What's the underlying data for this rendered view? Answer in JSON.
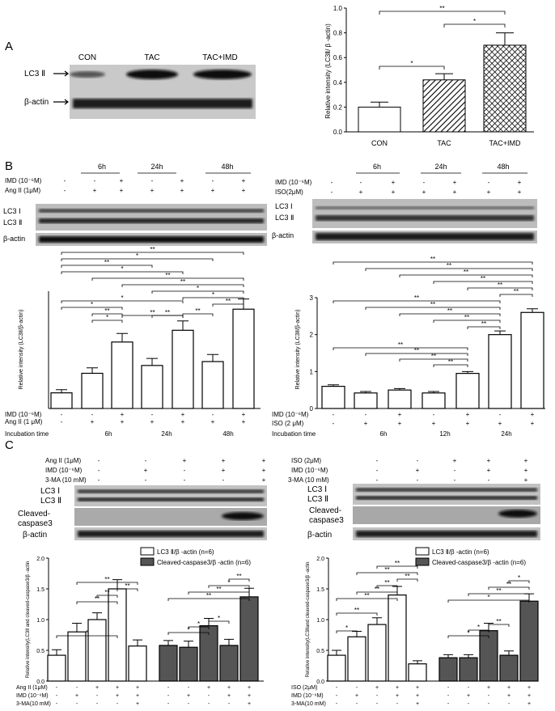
{
  "panels": {
    "a": "A",
    "b": "B",
    "c": "C"
  },
  "panel_a": {
    "lanes": [
      "CON",
      "TAC",
      "TAC+IMD"
    ],
    "rows": [
      "LC3 Ⅱ",
      "β-actin"
    ]
  },
  "panel_b": {
    "left_times": [
      "6h",
      "24h",
      "48h"
    ],
    "left_row_labels": [
      "IMD (10⁻⁶M)",
      "Ang II (1μM)"
    ],
    "right_times": [
      "6h",
      "24h",
      "48h"
    ],
    "right_row_labels": [
      "IMD (10⁻⁶M)",
      "ISO(2μM)"
    ],
    "blot_rows": [
      "LC3 Ⅰ",
      "LC3 Ⅱ",
      "β-actin"
    ],
    "left_bottom_rows": [
      "IMD (10⁻⁶M)",
      "Ang II (1 μM)",
      "Incubation time"
    ],
    "left_bottom_times": [
      "6h",
      "24h",
      "48h"
    ],
    "right_bottom_rows": [
      "IMD (10⁻⁶M)",
      "ISO (2 μM)",
      "Incubation time"
    ],
    "right_bottom_times": [
      "6h",
      "12h",
      "24h"
    ]
  },
  "panel_c": {
    "left_treat": [
      "Ang II (1μM)",
      "IMD (10⁻⁶M)",
      "3-MA (10 mM)"
    ],
    "right_treat": [
      "ISO (2μM)",
      "IMD (10⁻⁶M)",
      "3-MA (10 mM)"
    ],
    "blot_rows": [
      "LC3 Ⅰ",
      "LC3 Ⅱ",
      "Cleaved-",
      "caspase3",
      "β-actin"
    ],
    "legend": [
      "LC3 Ⅱ/β -actin (n=6)",
      "Cleaved-caspase3/β -actin (n=6)"
    ],
    "left_bottom_rows": [
      "Ang II (1μM)",
      "IMD (10⁻⁶M)",
      "3-MA(10 mM)"
    ],
    "right_bottom_rows": [
      "ISO (2μM)",
      "IMD (10⁻⁶M)",
      "3-MA(10 mM)"
    ]
  },
  "chart_data": [
    {
      "type": "bar",
      "ylabel": "Relative intensity (LC3Ⅱ/ β -actin)",
      "categories": [
        "CON",
        "TAC",
        "TAC+IMD"
      ],
      "values": [
        0.2,
        0.42,
        0.7
      ],
      "errors": [
        0.04,
        0.05,
        0.1
      ],
      "ylim": [
        0,
        1.0
      ],
      "yticks": [
        "0.0",
        "0.2",
        "0.4",
        "0.6",
        "0.8",
        "1.0"
      ],
      "fills": [
        "white",
        "hatch",
        "crosshatch"
      ],
      "significance": [
        "*",
        "*",
        "**"
      ]
    },
    {
      "type": "bar",
      "ylabel": "Relative intensity (LC3Ⅱ/β-actin)",
      "values": [
        0.2,
        0.45,
        0.85,
        0.55,
        1.0,
        0.6,
        1.27
      ],
      "errors": [
        0.04,
        0.07,
        0.11,
        0.09,
        0.12,
        0.09,
        0.13
      ],
      "ylim": [
        0,
        1.5
      ],
      "significance": [
        "*",
        "*",
        "**",
        "*",
        "**",
        "**",
        "**",
        "**",
        "*",
        "**",
        "*",
        "**",
        "**",
        "*",
        "*",
        "**"
      ]
    },
    {
      "type": "bar",
      "ylabel": "Relative intensity (LC3Ⅱ/β-actin)",
      "values": [
        0.6,
        0.42,
        0.5,
        0.42,
        0.95,
        2.0,
        2.6
      ],
      "errors": [
        0.04,
        0.04,
        0.04,
        0.04,
        0.05,
        0.1,
        0.1
      ],
      "ylim": [
        0,
        3
      ],
      "yticks": [
        "0",
        "1",
        "2",
        "3"
      ],
      "significance": [
        "**",
        "**",
        "**",
        "**",
        "**",
        "**",
        "**",
        "**",
        "**",
        "**",
        "**",
        "**",
        "**",
        "**",
        "**"
      ]
    },
    {
      "type": "bar",
      "ylabel": "Relative intensity(LC3Ⅱ and cleaved-caspase3/β -actin",
      "series": [
        {
          "name": "LC3 Ⅱ/β -actin (n=6)",
          "values": [
            0.42,
            0.8,
            1.0,
            1.5,
            0.57
          ],
          "errors": [
            0.09,
            0.14,
            0.11,
            0.15,
            0.1
          ]
        },
        {
          "name": "Cleaved-caspase3/β -actin (n=6)",
          "values": [
            0.58,
            0.55,
            0.9,
            0.58,
            1.37
          ],
          "errors": [
            0.08,
            0.1,
            0.12,
            0.1,
            0.14
          ]
        }
      ],
      "ylim": [
        0,
        2.0
      ],
      "yticks": [
        "0.0",
        "0.5",
        "1.0",
        "1.5",
        "2.0"
      ],
      "significance": [
        "*",
        "**",
        "**",
        "**",
        "**",
        "*",
        "*",
        "*",
        "**",
        "**",
        "*",
        "**"
      ]
    },
    {
      "type": "bar",
      "ylabel": "Relative intensity(LC3Ⅱand cleaved-caspase3/β -actin",
      "series": [
        {
          "name": "LC3 Ⅱ/β -actin (n=6)",
          "values": [
            0.42,
            0.72,
            0.92,
            1.4,
            0.28
          ],
          "errors": [
            0.08,
            0.09,
            0.11,
            0.14,
            0.05
          ]
        },
        {
          "name": "Cleaved-caspase3/β -actin (n=6)",
          "values": [
            0.38,
            0.38,
            0.82,
            0.42,
            1.3
          ],
          "errors": [
            0.05,
            0.05,
            0.12,
            0.07,
            0.12
          ]
        }
      ],
      "ylim": [
        0,
        2.0
      ],
      "yticks": [
        "0.0",
        "0.5",
        "1.0",
        "1.5",
        "2.0"
      ],
      "significance": [
        "*",
        "**",
        "**",
        "**",
        "**",
        "**",
        "*",
        "*",
        "**",
        "*",
        "**",
        "**",
        "*",
        "**",
        "**"
      ]
    }
  ]
}
